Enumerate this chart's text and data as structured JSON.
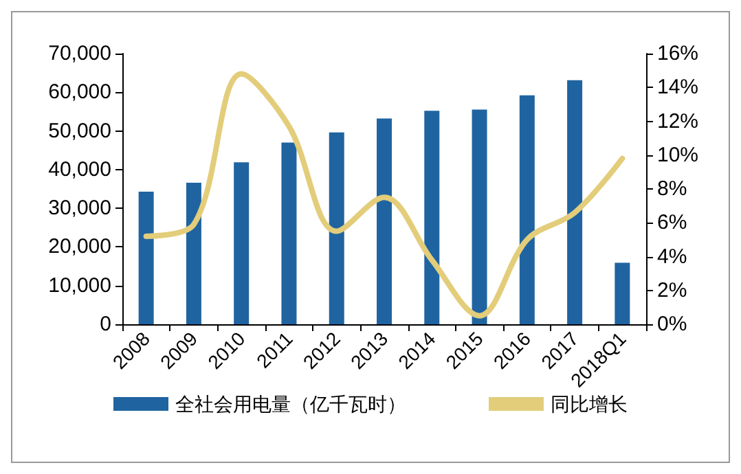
{
  "chart_data": {
    "type": "bar",
    "categories": [
      "2008",
      "2009",
      "2010",
      "2011",
      "2012",
      "2013",
      "2014",
      "2015",
      "2016",
      "2017",
      "2018Q1"
    ],
    "series": [
      {
        "name": "全社会用电量（亿千瓦时）",
        "color": "#1f64a0",
        "values": [
          34300,
          36600,
          41900,
          47000,
          49600,
          53200,
          55200,
          55500,
          59200,
          63100,
          15900
        ]
      },
      {
        "name": "同比增长",
        "type": "line",
        "axis": "y2",
        "color": "#e3cd7a",
        "values": [
          5.2,
          5.9,
          14.8,
          11.7,
          5.5,
          7.5,
          3.8,
          0.5,
          5.0,
          6.6,
          9.8
        ]
      }
    ],
    "ylim": [
      0,
      70000
    ],
    "yticks": [
      0,
      {
        "value": 10000,
        "label": "10,000"
      },
      {
        "value": 20000,
        "label": "20,000"
      },
      {
        "value": 30000,
        "label": "30,000"
      },
      {
        "value": 40000,
        "label": "40,000"
      },
      {
        "value": 50000,
        "label": "50,000"
      },
      {
        "value": 60000,
        "label": "60,000"
      },
      {
        "value": 70000,
        "label": "70,000"
      }
    ],
    "y2lim": [
      0,
      16
    ],
    "y2ticks": [
      {
        "value": 0,
        "label": "0%"
      },
      {
        "value": 2,
        "label": "2%"
      },
      {
        "value": 4,
        "label": "4%"
      },
      {
        "value": 6,
        "label": "6%"
      },
      {
        "value": 8,
        "label": "8%"
      },
      {
        "value": 10,
        "label": "10%"
      },
      {
        "value": 12,
        "label": "12%"
      },
      {
        "value": 14,
        "label": "14%"
      },
      {
        "value": 16,
        "label": "16%"
      }
    ],
    "grid": false,
    "legend": "bottom",
    "marker": "none",
    "line_style": "solid"
  }
}
